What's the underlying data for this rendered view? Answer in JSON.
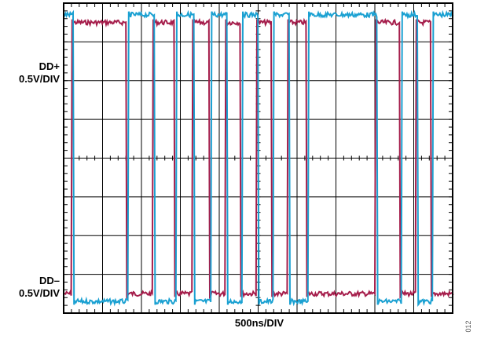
{
  "chart_data": {
    "type": "line",
    "title": "",
    "xlabel": "500ns/DIV",
    "divisions": {
      "x": 10,
      "y": 8
    },
    "grid": true,
    "x_unit": "ns",
    "x_per_div": 500,
    "series": [
      {
        "name": "DD+",
        "label": [
          "DD+",
          "0.5V/DIV"
        ],
        "color": "#A51D4B",
        "ground_div_from_top": 7.5,
        "low_div_from_top": 7.5,
        "high_div_from_top": 0.5,
        "edges": [
          {
            "x": 1.6,
            "to": "low"
          },
          {
            "x": 2.3,
            "to": "high"
          },
          {
            "x": 2.85,
            "to": "low"
          },
          {
            "x": 3.3,
            "to": "high"
          },
          {
            "x": 3.75,
            "to": "low"
          },
          {
            "x": 4.15,
            "to": "high"
          },
          {
            "x": 4.55,
            "to": "low"
          },
          {
            "x": 4.95,
            "to": "high"
          },
          {
            "x": 5.35,
            "to": "low"
          },
          {
            "x": 5.75,
            "to": "high"
          },
          {
            "x": 6.25,
            "to": "low"
          },
          {
            "x": 8.0,
            "to": "high"
          },
          {
            "x": 8.65,
            "to": "low"
          },
          {
            "x": 9.05,
            "to": "high"
          },
          {
            "x": 9.45,
            "to": "low"
          }
        ]
      },
      {
        "name": "DD-",
        "label": [
          "DD–",
          "0.5V/DIV"
        ],
        "color": "#1BA1D2",
        "low_div_from_top": 7.7,
        "high_div_from_top": 0.3
      }
    ]
  },
  "labels": {
    "dd_plus_line1": "DD+",
    "dd_plus_line2": "0.5V/DIV",
    "dd_minus_line1": "DD–",
    "dd_minus_line2": "0.5V/DIV",
    "x_scale": "500ns/DIV",
    "figure_number": "012"
  }
}
